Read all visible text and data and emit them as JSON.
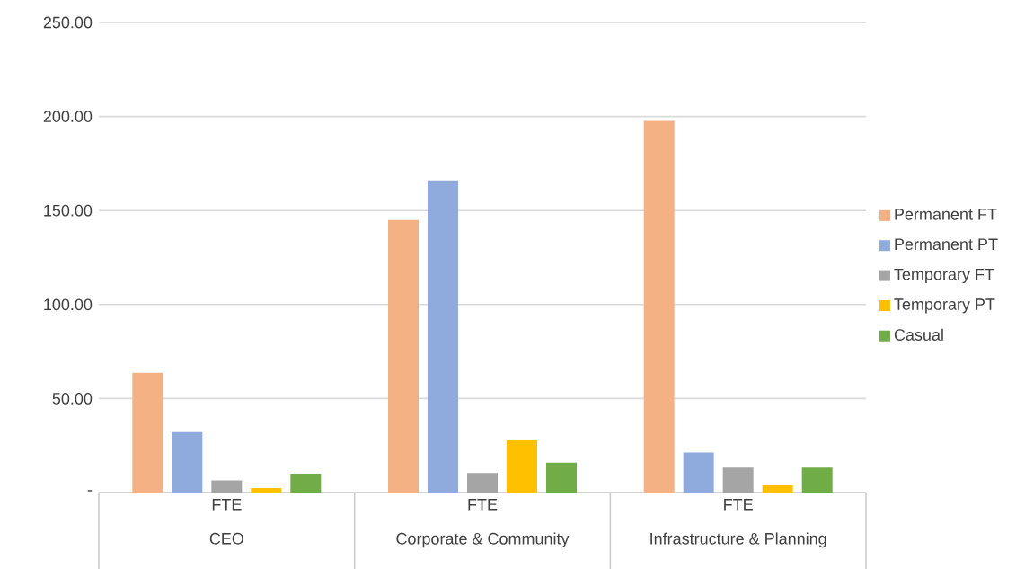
{
  "chart_data": {
    "type": "bar",
    "categories": [
      "CEO",
      "Corporate & Community",
      "Infrastructure & Planning"
    ],
    "annotations": [
      "FTE",
      "FTE",
      "FTE"
    ],
    "series": [
      {
        "name": "Permanent FT",
        "color": "#f4b183",
        "values": [
          63.7,
          145.0,
          197.7
        ]
      },
      {
        "name": "Permanent PT",
        "color": "#8faadc",
        "values": [
          32.2,
          166.0,
          21.3
        ]
      },
      {
        "name": "Temporary FT",
        "color": "#a5a5a5",
        "values": [
          6.4,
          10.4,
          13.3
        ]
      },
      {
        "name": "Temporary PT",
        "color": "#ffc000",
        "values": [
          2.4,
          27.9,
          4.0
        ]
      },
      {
        "name": "Casual",
        "color": "#70ad47",
        "values": [
          10.0,
          15.9,
          13.3
        ]
      }
    ],
    "ylim": [
      0,
      250
    ],
    "yticks": [
      {
        "value": 0,
        "label": "-"
      },
      {
        "value": 50,
        "label": "50.00"
      },
      {
        "value": 100,
        "label": "100.00"
      },
      {
        "value": 150,
        "label": "150.00"
      },
      {
        "value": 200,
        "label": "200.00"
      },
      {
        "value": 250,
        "label": "250.00"
      }
    ],
    "grid": "y",
    "legend": "right"
  }
}
